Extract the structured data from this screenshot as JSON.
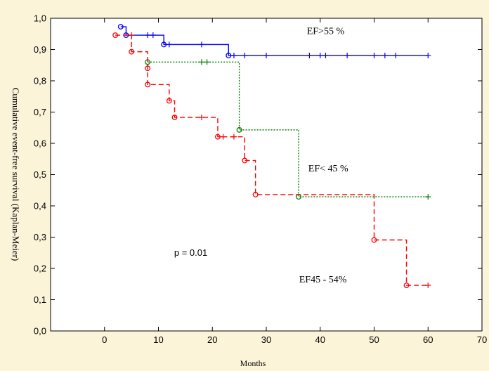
{
  "chart_data": {
    "type": "line",
    "xlabel": "Months",
    "ylabel": "Cumulative event-free survival (Kaplan-Meier)",
    "xlim": [
      -10,
      70
    ],
    "ylim": [
      0.0,
      1.0
    ],
    "xticks": [
      "0",
      "10",
      "20",
      "30",
      "40",
      "50",
      "60",
      "70"
    ],
    "yticks": [
      "0,0",
      "0,1",
      "0,2",
      "0,3",
      "0,4",
      "0,5",
      "0,6",
      "0,7",
      "0,8",
      "0,9",
      "1,0"
    ],
    "grid": false,
    "annotations": [
      {
        "text": "EF>55 %",
        "x": 41,
        "y": 0.95
      },
      {
        "text": "EF< 45 %",
        "x": 41.5,
        "y": 0.51
      },
      {
        "text": "EF45 - 54%",
        "x": 40.5,
        "y": 0.155
      },
      {
        "text": "p = 0.01",
        "x": 16,
        "y": 0.24
      }
    ],
    "series": [
      {
        "color": "#0000ff",
        "dash": "solid",
        "steps": [
          [
            3,
            0.973
          ],
          [
            4,
            0.946
          ],
          [
            11,
            0.916
          ],
          [
            23,
            0.881
          ],
          [
            60,
            0.881
          ]
        ],
        "events": [
          [
            3,
            0.973
          ],
          [
            4,
            0.946
          ],
          [
            11,
            0.916
          ],
          [
            23,
            0.881
          ]
        ],
        "censored": [
          [
            8,
            0.946
          ],
          [
            9,
            0.946
          ],
          [
            12,
            0.916
          ],
          [
            18,
            0.916
          ],
          [
            24,
            0.881
          ],
          [
            26,
            0.881
          ],
          [
            30,
            0.881
          ],
          [
            38,
            0.881
          ],
          [
            40,
            0.881
          ],
          [
            41,
            0.881
          ],
          [
            45,
            0.881
          ],
          [
            50,
            0.881
          ],
          [
            52,
            0.881
          ],
          [
            54,
            0.881
          ],
          [
            60,
            0.881
          ]
        ]
      },
      {
        "color": "#008000",
        "dash": "dotted",
        "steps": [
          [
            8,
            0.86
          ],
          [
            25,
            0.643
          ],
          [
            36,
            0.429
          ],
          [
            60,
            0.429
          ]
        ],
        "events": [
          [
            8,
            0.86
          ],
          [
            25,
            0.643
          ],
          [
            36,
            0.429
          ]
        ],
        "censored": [
          [
            18,
            0.86
          ],
          [
            19,
            0.86
          ],
          [
            60,
            0.429
          ]
        ]
      },
      {
        "color": "#ff0000",
        "dash": "dashed",
        "steps": [
          [
            2,
            0.946
          ],
          [
            5,
            0.893
          ],
          [
            8,
            0.84
          ],
          [
            8,
            0.788
          ],
          [
            12,
            0.736
          ],
          [
            13,
            0.683
          ],
          [
            21,
            0.621
          ],
          [
            26,
            0.545
          ],
          [
            28,
            0.436
          ],
          [
            50,
            0.291
          ],
          [
            56,
            0.146
          ],
          [
            60,
            0.146
          ]
        ],
        "events": [
          [
            2,
            0.946
          ],
          [
            5,
            0.893
          ],
          [
            8,
            0.84
          ],
          [
            8,
            0.788
          ],
          [
            12,
            0.736
          ],
          [
            13,
            0.683
          ],
          [
            21,
            0.621
          ],
          [
            26,
            0.545
          ],
          [
            28,
            0.436
          ],
          [
            50,
            0.291
          ],
          [
            56,
            0.146
          ]
        ],
        "censored": [
          [
            5,
            0.946
          ],
          [
            18,
            0.683
          ],
          [
            22,
            0.621
          ],
          [
            24,
            0.621
          ],
          [
            60,
            0.146
          ]
        ]
      }
    ]
  }
}
